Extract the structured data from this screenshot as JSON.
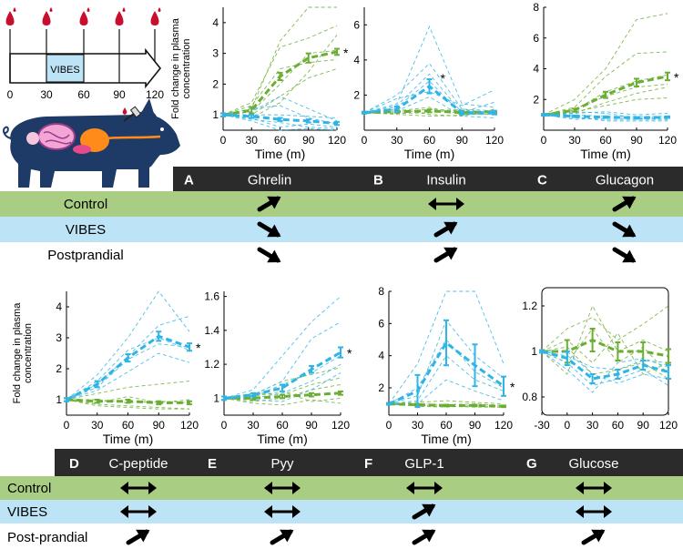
{
  "colors": {
    "control": "#6bae34",
    "vibes": "#2fb4e6",
    "control_band": "#a9cd83",
    "vibes_band": "#bde3f7",
    "header_band": "#2b2b2b",
    "blood": "#c8102e",
    "pig": "#1e3a66"
  },
  "timeline": {
    "vibes_label": "VIBES",
    "ticks": [
      "0",
      "30",
      "60",
      "90",
      "120"
    ]
  },
  "shared": {
    "ylabel_line1": "Fold change in plasma",
    "ylabel_line2": "concentration",
    "xlabel": "Time (m)",
    "sig_mark": "*"
  },
  "table_top": {
    "rows": [
      "Control",
      "VIBES",
      "Postprandial"
    ],
    "columns": [
      {
        "letter": "A",
        "name": "Ghrelin",
        "arrows": [
          "up",
          "down",
          "down"
        ]
      },
      {
        "letter": "B",
        "name": "Insulin",
        "arrows": [
          "both",
          "up",
          "up"
        ]
      },
      {
        "letter": "C",
        "name": "Glucagon",
        "arrows": [
          "up",
          "down",
          "down"
        ]
      }
    ]
  },
  "table_bottom": {
    "rows": [
      "Control",
      "VIBES",
      "Post-prandial"
    ],
    "columns": [
      {
        "letter": "D",
        "name": "C-peptide",
        "arrows": [
          "both",
          "both",
          "up"
        ]
      },
      {
        "letter": "E",
        "name": "Pyy",
        "arrows": [
          "both",
          "both",
          "up"
        ]
      },
      {
        "letter": "F",
        "name": "GLP-1",
        "arrows": [
          "both",
          "up",
          "up"
        ]
      },
      {
        "letter": "G",
        "name": "Glucose",
        "arrows": [
          "both",
          "both",
          "up"
        ]
      }
    ]
  },
  "chart_data": [
    {
      "id": "A",
      "type": "line",
      "title": "Ghrelin",
      "xlabel": "Time (m)",
      "ylabel": "Fold change in plasma concentration",
      "x": [
        0,
        30,
        60,
        90,
        120
      ],
      "xlim": [
        0,
        120
      ],
      "ylim": [
        0.5,
        4.5
      ],
      "xticks": [
        0,
        30,
        60,
        90,
        120
      ],
      "yticks": [
        1,
        2,
        3,
        4
      ],
      "series": [
        {
          "name": "Control",
          "values": [
            1.0,
            1.15,
            2.25,
            2.85,
            3.05
          ],
          "err": [
            0.05,
            0.1,
            0.12,
            0.15,
            0.1
          ],
          "significant": true
        },
        {
          "name": "VIBES",
          "values": [
            1.0,
            0.95,
            0.85,
            0.8,
            0.72
          ],
          "err": [
            0.05,
            0.05,
            0.05,
            0.05,
            0.05
          ],
          "significant": false
        }
      ],
      "individual_control": [
        [
          1,
          1.2,
          3.4,
          4.5,
          4.5
        ],
        [
          1,
          0.9,
          1.4,
          2.4,
          3.6
        ],
        [
          1,
          1.3,
          2.5,
          2.7,
          2.8
        ],
        [
          1,
          1.1,
          2.0,
          3.0,
          3.1
        ],
        [
          1,
          1.0,
          1.6,
          2.2,
          2.5
        ],
        [
          1,
          1.4,
          3.2,
          3.5,
          3.9
        ]
      ],
      "individual_vibes": [
        [
          1,
          1.1,
          1.6,
          1.2,
          0.8
        ],
        [
          1,
          0.9,
          0.6,
          0.7,
          0.6
        ],
        [
          1,
          1.0,
          1.0,
          0.95,
          0.9
        ],
        [
          1,
          0.8,
          0.5,
          0.55,
          0.5
        ],
        [
          1,
          1.2,
          1.3,
          0.9,
          0.7
        ],
        [
          1,
          0.85,
          0.75,
          0.6,
          0.55
        ]
      ]
    },
    {
      "id": "B",
      "type": "line",
      "title": "Insulin",
      "xlabel": "Time (m)",
      "ylabel": "",
      "x": [
        0,
        30,
        60,
        90,
        120
      ],
      "xlim": [
        0,
        120
      ],
      "ylim": [
        0,
        7
      ],
      "xticks": [
        0,
        30,
        60,
        90,
        120
      ],
      "yticks": [
        2,
        4,
        6
      ],
      "series": [
        {
          "name": "Control",
          "values": [
            1.0,
            1.05,
            1.1,
            1.0,
            1.05
          ],
          "err": [
            0.05,
            0.05,
            0.08,
            0.05,
            0.05
          ],
          "significant": false
        },
        {
          "name": "VIBES",
          "values": [
            1.0,
            1.2,
            2.5,
            1.0,
            1.0
          ],
          "err": [
            0.05,
            0.15,
            0.4,
            0.1,
            0.1
          ],
          "significant": true
        }
      ],
      "individual_control": [
        [
          1,
          0.9,
          0.8,
          0.85,
          1.1
        ],
        [
          1,
          1.1,
          1.3,
          0.9,
          0.9
        ],
        [
          1,
          1.0,
          1.2,
          1.1,
          1.0
        ],
        [
          1,
          1.2,
          0.9,
          0.8,
          1.2
        ],
        [
          1,
          0.95,
          1.0,
          1.2,
          0.95
        ]
      ],
      "individual_vibes": [
        [
          1,
          1.5,
          5.9,
          1.5,
          1.3
        ],
        [
          1,
          2.0,
          3.8,
          1.2,
          1.1
        ],
        [
          1,
          1.3,
          2.8,
          0.9,
          0.9
        ],
        [
          1,
          1.8,
          2.2,
          1.4,
          2.3
        ],
        [
          1,
          1.1,
          1.9,
          0.8,
          0.7
        ],
        [
          1,
          1.4,
          3.2,
          1.0,
          1.6
        ]
      ]
    },
    {
      "id": "C",
      "type": "line",
      "title": "Glucagon",
      "xlabel": "Time (m)",
      "ylabel": "",
      "x": [
        0,
        30,
        60,
        90,
        120
      ],
      "xlim": [
        0,
        120
      ],
      "ylim": [
        0,
        8
      ],
      "xticks": [
        0,
        30,
        60,
        90,
        120
      ],
      "yticks": [
        2,
        4,
        6,
        8
      ],
      "series": [
        {
          "name": "Control",
          "values": [
            1.0,
            1.3,
            2.3,
            3.1,
            3.5
          ],
          "err": [
            0.05,
            0.1,
            0.2,
            0.25,
            0.25
          ],
          "significant": true
        },
        {
          "name": "VIBES",
          "values": [
            1.0,
            0.9,
            0.85,
            0.8,
            0.85
          ],
          "err": [
            0.05,
            0.05,
            0.05,
            0.05,
            0.05
          ],
          "significant": false
        }
      ],
      "individual_control": [
        [
          1,
          2.0,
          4.0,
          7.2,
          7.6
        ],
        [
          1,
          1.5,
          3.5,
          5.0,
          5.1
        ],
        [
          1,
          1.3,
          2.5,
          3.2,
          3.6
        ],
        [
          1,
          1.1,
          1.8,
          2.4,
          2.8
        ],
        [
          1,
          1.2,
          1.6,
          2.0,
          2.1
        ],
        [
          1,
          1.4,
          2.2,
          2.8,
          3.0
        ]
      ],
      "individual_vibes": [
        [
          1,
          1.1,
          1.2,
          1.0,
          1.1
        ],
        [
          1,
          0.8,
          0.7,
          0.7,
          0.7
        ],
        [
          1,
          1.0,
          0.9,
          0.9,
          0.9
        ],
        [
          1,
          0.9,
          0.6,
          0.6,
          0.6
        ],
        [
          1,
          1.2,
          1.1,
          0.8,
          0.8
        ],
        [
          1,
          0.7,
          0.8,
          0.75,
          0.7
        ]
      ]
    },
    {
      "id": "D",
      "type": "line",
      "title": "C-peptide",
      "xlabel": "Time (m)",
      "ylabel": "Fold change in plasma concentration",
      "x": [
        0,
        30,
        60,
        90,
        120
      ],
      "xlim": [
        0,
        120
      ],
      "ylim": [
        0.5,
        4.5
      ],
      "xticks": [
        0,
        30,
        60,
        90,
        120
      ],
      "yticks": [
        1,
        2,
        3,
        4
      ],
      "series": [
        {
          "name": "Control",
          "values": [
            1.0,
            0.95,
            0.95,
            0.9,
            0.9
          ],
          "err": [
            0.05,
            0.05,
            0.05,
            0.05,
            0.05
          ],
          "significant": false
        },
        {
          "name": "VIBES",
          "values": [
            1.0,
            1.5,
            2.35,
            3.05,
            2.7
          ],
          "err": [
            0.05,
            0.1,
            0.12,
            0.15,
            0.12
          ],
          "significant": true
        }
      ],
      "individual_control": [
        [
          1,
          1.2,
          1.4,
          1.5,
          1.6
        ],
        [
          1,
          0.9,
          1.1,
          0.9,
          1.0
        ],
        [
          1,
          0.85,
          0.8,
          0.75,
          0.7
        ],
        [
          1,
          1.0,
          0.9,
          0.95,
          0.9
        ],
        [
          1,
          0.8,
          0.75,
          0.7,
          0.7
        ]
      ],
      "individual_vibes": [
        [
          1,
          1.8,
          3.0,
          4.5,
          3.2
        ],
        [
          1,
          1.5,
          2.4,
          3.4,
          3.7
        ],
        [
          1,
          1.4,
          2.3,
          2.8,
          2.7
        ],
        [
          1,
          1.3,
          1.9,
          2.5,
          2.2
        ],
        [
          1,
          1.6,
          2.6,
          3.0,
          2.6
        ]
      ]
    },
    {
      "id": "E",
      "type": "line",
      "title": "Pyy",
      "xlabel": "Time (m)",
      "ylabel": "",
      "x": [
        0,
        30,
        60,
        90,
        120
      ],
      "xlim": [
        0,
        120
      ],
      "ylim": [
        0.9,
        1.63
      ],
      "xticks": [
        0,
        30,
        60,
        90,
        120
      ],
      "yticks": [
        1,
        1.2,
        1.4,
        1.6
      ],
      "series": [
        {
          "name": "Control",
          "values": [
            1.0,
            1.0,
            1.01,
            1.02,
            1.03
          ],
          "err": [
            0.01,
            0.01,
            0.01,
            0.01,
            0.01
          ],
          "significant": false
        },
        {
          "name": "VIBES",
          "values": [
            1.0,
            1.02,
            1.06,
            1.17,
            1.27
          ],
          "err": [
            0.01,
            0.01,
            0.02,
            0.02,
            0.03
          ],
          "significant": true
        }
      ],
      "individual_control": [
        [
          1,
          1.02,
          1.1,
          1.14,
          1.18
        ],
        [
          1,
          0.98,
          1.0,
          1.05,
          1.08
        ],
        [
          1,
          1.01,
          1.04,
          0.98,
          1.0
        ],
        [
          1,
          0.97,
          0.96,
          0.99,
          0.97
        ],
        [
          1,
          1.03,
          1.02,
          1.08,
          1.12
        ]
      ],
      "individual_vibes": [
        [
          1,
          1.05,
          1.25,
          1.45,
          1.6
        ],
        [
          1,
          1.02,
          1.1,
          1.35,
          1.45
        ],
        [
          1,
          1.0,
          1.03,
          1.1,
          1.2
        ],
        [
          1,
          0.99,
          0.98,
          1.05,
          1.15
        ],
        [
          1,
          1.01,
          1.08,
          1.15,
          1.25
        ]
      ]
    },
    {
      "id": "F",
      "type": "line",
      "title": "GLP-1",
      "xlabel": "Time (m)",
      "ylabel": "",
      "x": [
        0,
        30,
        60,
        90,
        120
      ],
      "xlim": [
        0,
        120
      ],
      "ylim": [
        0.3,
        8
      ],
      "xticks": [
        0,
        30,
        60,
        90,
        120
      ],
      "yticks": [
        2,
        4,
        6,
        8
      ],
      "series": [
        {
          "name": "Control",
          "values": [
            1.0,
            0.95,
            0.9,
            0.9,
            0.85
          ],
          "err": [
            0.05,
            0.05,
            0.05,
            0.05,
            0.05
          ],
          "significant": false
        },
        {
          "name": "VIBES",
          "values": [
            1.0,
            1.8,
            4.8,
            3.4,
            2.1
          ],
          "err": [
            0.05,
            1.0,
            1.4,
            1.3,
            0.6
          ],
          "significant": true
        }
      ],
      "individual_control": [
        [
          1,
          1.1,
          1.2,
          1.1,
          1.0
        ],
        [
          1,
          0.9,
          0.85,
          0.8,
          0.8
        ],
        [
          1,
          1.0,
          0.95,
          1.0,
          0.9
        ],
        [
          1,
          0.85,
          0.8,
          0.9,
          0.8
        ]
      ],
      "individual_vibes": [
        [
          1,
          3.5,
          8.0,
          8.0,
          3.5
        ],
        [
          1,
          1.5,
          6.2,
          4.0,
          2.6
        ],
        [
          1,
          1.2,
          4.0,
          2.5,
          1.8
        ],
        [
          1,
          1.0,
          2.5,
          1.8,
          1.2
        ],
        [
          1,
          2.0,
          5.0,
          3.0,
          2.0
        ]
      ]
    },
    {
      "id": "G",
      "type": "line",
      "title": "Glucose",
      "xlabel": "",
      "ylabel": "",
      "x": [
        -30,
        0,
        30,
        60,
        90,
        120
      ],
      "xlim": [
        -30,
        120
      ],
      "ylim": [
        0.72,
        1.28
      ],
      "xticks": [
        -30,
        0,
        30,
        60,
        90,
        120
      ],
      "yticks": [
        0.8,
        1,
        1.2
      ],
      "series": [
        {
          "name": "Control",
          "values": [
            1.0,
            1.0,
            1.05,
            1.0,
            1.0,
            0.98
          ],
          "err": [
            0.005,
            0.05,
            0.05,
            0.04,
            0.04,
            0.03
          ],
          "significant": false
        },
        {
          "name": "VIBES",
          "values": [
            1.0,
            0.97,
            0.88,
            0.9,
            0.94,
            0.91
          ],
          "err": [
            0.005,
            0.03,
            0.02,
            0.02,
            0.02,
            0.03
          ],
          "significant": false
        }
      ],
      "individual_control": [
        [
          1,
          1.1,
          1.15,
          1.05,
          1.12,
          1.2
        ],
        [
          1,
          0.95,
          1.1,
          0.95,
          1.02,
          0.9
        ],
        [
          1,
          1.05,
          0.95,
          1.08,
          0.9,
          0.95
        ],
        [
          1,
          0.9,
          1.2,
          1.0,
          1.05,
          1.0
        ],
        [
          1,
          1.02,
          0.9,
          0.92,
          0.95,
          0.88
        ]
      ],
      "individual_vibes": [
        [
          1,
          0.95,
          0.85,
          0.88,
          0.92,
          0.85
        ],
        [
          1,
          0.92,
          0.82,
          0.95,
          0.97,
          0.93
        ],
        [
          1,
          1.0,
          0.9,
          0.86,
          0.9,
          0.88
        ],
        [
          1,
          0.98,
          0.93,
          0.92,
          0.96,
          0.95
        ]
      ]
    }
  ]
}
